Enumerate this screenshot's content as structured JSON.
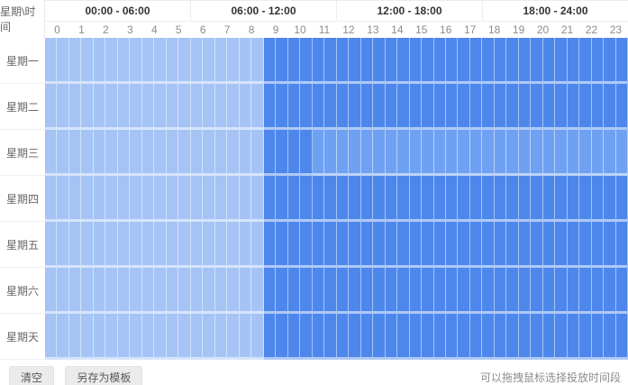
{
  "header": {
    "corner_label": "星期\\时间",
    "time_ranges": [
      "00:00 - 06:00",
      "06:00 - 12:00",
      "12:00 - 18:00",
      "18:00 - 24:00"
    ],
    "hours": [
      "0",
      "1",
      "2",
      "3",
      "4",
      "5",
      "6",
      "7",
      "8",
      "9",
      "10",
      "11",
      "12",
      "13",
      "14",
      "15",
      "16",
      "17",
      "18",
      "19",
      "20",
      "21",
      "22",
      "23"
    ]
  },
  "schedule": {
    "slot_count": 48,
    "slot_unit": "half-hour",
    "default_state": "unselected",
    "days": [
      {
        "label": "星期一",
        "ranges": [
          {
            "from": 18,
            "to": 48,
            "state": "selected"
          }
        ]
      },
      {
        "label": "星期二",
        "ranges": [
          {
            "from": 18,
            "to": 48,
            "state": "selected"
          }
        ]
      },
      {
        "label": "星期三",
        "ranges": [
          {
            "from": 18,
            "to": 22,
            "state": "selected"
          },
          {
            "from": 22,
            "to": 48,
            "state": "highlight"
          }
        ]
      },
      {
        "label": "星期四",
        "ranges": [
          {
            "from": 18,
            "to": 48,
            "state": "selected"
          }
        ]
      },
      {
        "label": "星期五",
        "ranges": [
          {
            "from": 18,
            "to": 48,
            "state": "selected"
          }
        ]
      },
      {
        "label": "星期六",
        "ranges": [
          {
            "from": 18,
            "to": 48,
            "state": "selected"
          }
        ]
      },
      {
        "label": "星期天",
        "ranges": [
          {
            "from": 18,
            "to": 48,
            "state": "selected"
          }
        ]
      }
    ]
  },
  "colors": {
    "unselected": "#a5c3f5",
    "selected": "#4d87ec",
    "highlight": "#6fa1f2"
  },
  "footer": {
    "clear_label": "清空",
    "save_template_label": "另存为模板",
    "hint": "可以拖拽鼠标选择投放时间段"
  }
}
